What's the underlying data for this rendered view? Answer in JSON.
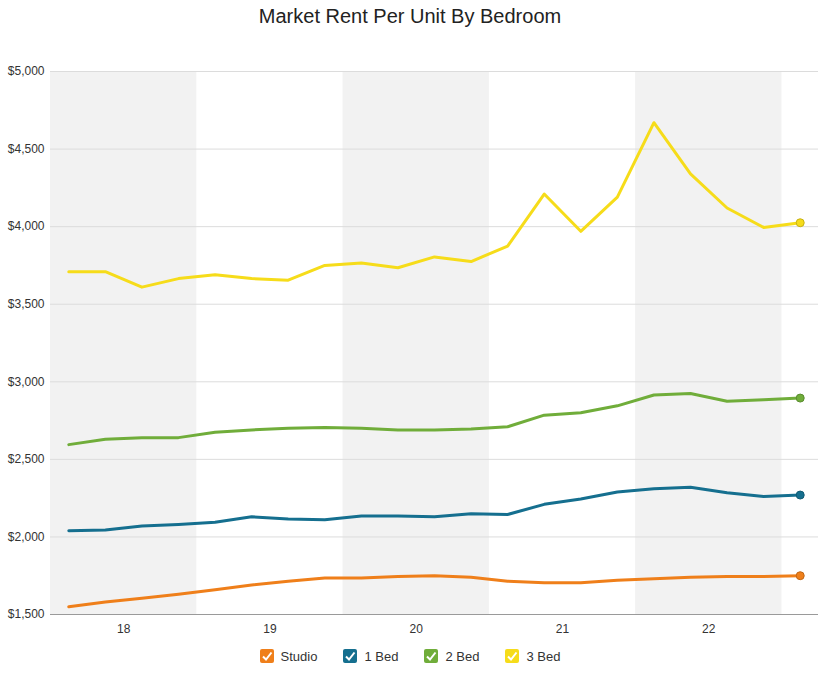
{
  "chart_data": {
    "type": "line",
    "title": "Market Rent Per Unit By Bedroom",
    "x": [
      2018.125,
      2018.375,
      2018.625,
      2018.875,
      2019.125,
      2019.375,
      2019.625,
      2019.875,
      2020.125,
      2020.375,
      2020.625,
      2020.875,
      2021.125,
      2021.375,
      2021.625,
      2021.875,
      2022.125,
      2022.375,
      2022.625,
      2022.875,
      2023.125
    ],
    "series": [
      {
        "name": "Studio",
        "color": "#ef7f1a",
        "values": [
          1550,
          1580,
          1605,
          1630,
          1660,
          1690,
          1715,
          1735,
          1735,
          1745,
          1750,
          1740,
          1715,
          1705,
          1705,
          1720,
          1730,
          1740,
          1745,
          1745,
          1750
        ]
      },
      {
        "name": "1 Bed",
        "color": "#156f8f",
        "values": [
          2040,
          2045,
          2070,
          2080,
          2095,
          2130,
          2115,
          2110,
          2135,
          2135,
          2130,
          2150,
          2145,
          2210,
          2245,
          2290,
          2310,
          2320,
          2285,
          2260,
          2270
        ]
      },
      {
        "name": "2 Bed",
        "color": "#70ad3a",
        "values": [
          2595,
          2630,
          2640,
          2640,
          2675,
          2690,
          2700,
          2705,
          2700,
          2690,
          2690,
          2695,
          2710,
          2785,
          2800,
          2845,
          2915,
          2925,
          2875,
          2885,
          2895
        ]
      },
      {
        "name": "3 Bed",
        "color": "#f6dc1a",
        "values": [
          3710,
          3710,
          3610,
          3665,
          3690,
          3665,
          3655,
          3750,
          3765,
          3735,
          3805,
          3775,
          3875,
          4210,
          3970,
          4190,
          4670,
          4340,
          4120,
          3995,
          4025
        ]
      }
    ],
    "xlim": [
      2018,
      2023.25
    ],
    "xticks": [
      {
        "value": 2018.5,
        "label": "18"
      },
      {
        "value": 2019.5,
        "label": "19"
      },
      {
        "value": 2020.5,
        "label": "20"
      },
      {
        "value": 2021.5,
        "label": "21"
      },
      {
        "value": 2022.5,
        "label": "22"
      }
    ],
    "ylim": [
      1500,
      5000
    ],
    "yticks": [
      {
        "value": 1500,
        "label": "$1,500"
      },
      {
        "value": 2000,
        "label": "$2,000"
      },
      {
        "value": 2500,
        "label": "$2,500"
      },
      {
        "value": 3000,
        "label": "$3,000"
      },
      {
        "value": 3500,
        "label": "$3,500"
      },
      {
        "value": 4000,
        "label": "$4,000"
      },
      {
        "value": 4500,
        "label": "$4,500"
      },
      {
        "value": 5000,
        "label": "$5,000"
      }
    ],
    "grid": true,
    "legend": "bottom",
    "marker": "end"
  }
}
